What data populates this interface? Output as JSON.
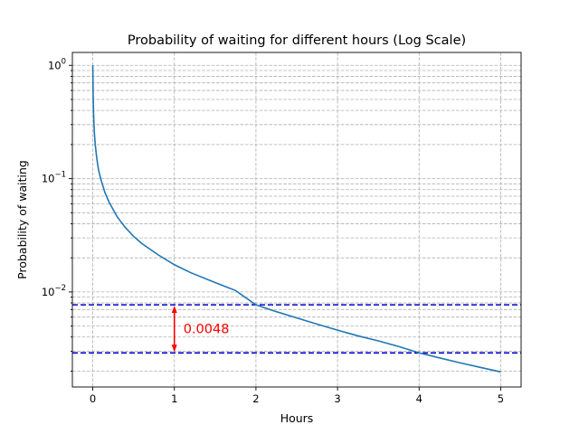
{
  "chart_data": {
    "type": "line",
    "title": "Probability of waiting for different hours (Log Scale)",
    "xlabel": "Hours",
    "ylabel": "Probability of waiting",
    "xlim": [
      -0.25,
      5.25
    ],
    "ylim": [
      0.00145,
      1.3
    ],
    "yscale": "log",
    "grid": true,
    "x_ticks": [
      0,
      1,
      2,
      3,
      4,
      5
    ],
    "y_ticks": [
      {
        "value": 1,
        "base": "10",
        "exp": "0"
      },
      {
        "value": 0.1,
        "base": "10",
        "exp": "−1"
      },
      {
        "value": 0.01,
        "base": "10",
        "exp": "−2"
      }
    ],
    "y_minor_ticks": [
      0.002,
      0.003,
      0.004,
      0.005,
      0.006,
      0.007,
      0.008,
      0.009,
      0.02,
      0.03,
      0.04,
      0.05,
      0.06,
      0.07,
      0.08,
      0.09,
      0.2,
      0.3,
      0.4,
      0.5,
      0.6,
      0.7,
      0.8,
      0.9
    ],
    "series": [
      {
        "color": "#1f77b4",
        "x": [
          0,
          0.005,
          0.01,
          0.02,
          0.03,
          0.05,
          0.07,
          0.1,
          0.15,
          0.2,
          0.3,
          0.4,
          0.5,
          0.6,
          0.8,
          1.0,
          1.2,
          1.5,
          1.75,
          2.0,
          2.25,
          2.5,
          2.75,
          3.0,
          3.25,
          3.5,
          3.75,
          4.0,
          4.25,
          4.5,
          4.75,
          5.0
        ],
        "y": [
          1.0,
          0.53,
          0.37,
          0.25,
          0.2,
          0.15,
          0.12,
          0.098,
          0.075,
          0.062,
          0.046,
          0.037,
          0.031,
          0.0268,
          0.0213,
          0.0174,
          0.0148,
          0.0121,
          0.0103,
          0.0077,
          0.0067,
          0.0059,
          0.0052,
          0.0046,
          0.0041,
          0.0037,
          0.0033,
          0.0029,
          0.00262,
          0.00237,
          0.00216,
          0.00197
        ]
      }
    ],
    "reference_lines": [
      {
        "orientation": "horizontal",
        "y": 0.0077,
        "color": "#0000cd",
        "style": "dashed"
      },
      {
        "orientation": "horizontal",
        "y": 0.0029,
        "color": "#0000cd",
        "style": "dashed"
      }
    ],
    "annotation": {
      "text": "0.0048",
      "x": 1.0,
      "y_from": 0.0029,
      "y_to": 0.0077,
      "color": "#ff0000"
    }
  }
}
